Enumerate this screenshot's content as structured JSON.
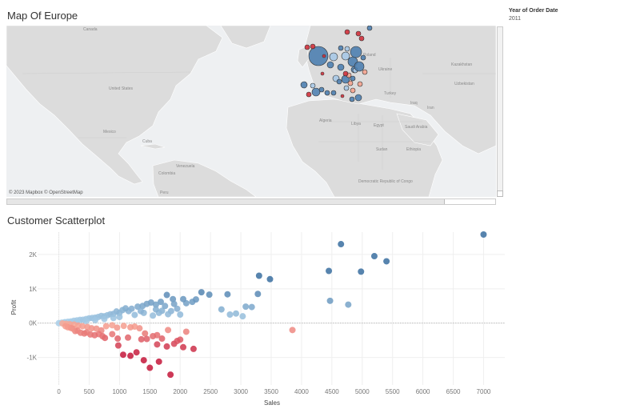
{
  "map": {
    "title": "Map Of Europe",
    "attribution": "© 2023 Mapbox © OpenStreetMap",
    "labels": [
      "Canada",
      "United States",
      "Mexico",
      "Cuba",
      "Venezuela",
      "Colombia",
      "Peru",
      "Algeria",
      "Libya",
      "Egypt",
      "Sudan",
      "Saudi Arabia",
      "Turkey",
      "Iraq",
      "Iran",
      "Ukraine",
      "Poland",
      "Kazakhstan",
      "Ethiopia",
      "Democratic Republic of Congo",
      "Uzbekistan"
    ],
    "bubble_colors": {
      "profit": "#4e7fb0",
      "profit_light": "#a7c8e6",
      "loss": "#d0313c",
      "loss_light": "#f4a38f"
    }
  },
  "filter": {
    "label": "Year of Order Date",
    "value": "2011"
  },
  "chart_data": {
    "type": "scatter",
    "title": "Customer Scatterplot",
    "xlabel": "Sales",
    "ylabel": "Profit",
    "xlim": [
      -350,
      7350
    ],
    "ylim": [
      -1800,
      2650
    ],
    "x_ticks": [
      0,
      500,
      1000,
      1500,
      2000,
      2500,
      3000,
      3500,
      4000,
      4500,
      5000,
      5500,
      6000,
      6500,
      7000
    ],
    "y_ticks": [
      -1000,
      0,
      1000,
      2000
    ],
    "y_tick_labels": [
      "-1K",
      "0K",
      "1K",
      "2K"
    ],
    "grid": true,
    "points": [
      [
        7000,
        2580
      ],
      [
        4650,
        2300
      ],
      [
        5200,
        1950
      ],
      [
        5400,
        1800
      ],
      [
        3300,
        1380
      ],
      [
        3480,
        1280
      ],
      [
        4450,
        1520
      ],
      [
        4980,
        1500
      ],
      [
        4470,
        650
      ],
      [
        4770,
        540
      ],
      [
        3850,
        -200
      ],
      [
        2350,
        900
      ],
      [
        2480,
        830
      ],
      [
        2780,
        840
      ],
      [
        3280,
        850
      ],
      [
        3180,
        470
      ],
      [
        3080,
        480
      ],
      [
        2920,
        280
      ],
      [
        2820,
        250
      ],
      [
        3030,
        200
      ],
      [
        2680,
        400
      ],
      [
        2200,
        620
      ],
      [
        2260,
        690
      ],
      [
        2100,
        580
      ],
      [
        2050,
        700
      ],
      [
        1780,
        820
      ],
      [
        1880,
        700
      ],
      [
        1680,
        620
      ],
      [
        1600,
        540
      ],
      [
        1520,
        600
      ],
      [
        1450,
        560
      ],
      [
        1380,
        500
      ],
      [
        1300,
        480
      ],
      [
        1200,
        420
      ],
      [
        1150,
        350
      ],
      [
        1100,
        430
      ],
      [
        1050,
        380
      ],
      [
        1000,
        300
      ],
      [
        950,
        340
      ],
      [
        900,
        270
      ],
      [
        850,
        260
      ],
      [
        800,
        230
      ],
      [
        750,
        200
      ],
      [
        700,
        210
      ],
      [
        650,
        180
      ],
      [
        600,
        160
      ],
      [
        550,
        150
      ],
      [
        500,
        140
      ],
      [
        450,
        120
      ],
      [
        400,
        100
      ],
      [
        350,
        95
      ],
      [
        300,
        80
      ],
      [
        250,
        70
      ],
      [
        200,
        50
      ],
      [
        150,
        40
      ],
      [
        100,
        30
      ],
      [
        50,
        15
      ],
      [
        0,
        0
      ],
      [
        1950,
        420
      ],
      [
        1850,
        350
      ],
      [
        2000,
        250
      ],
      [
        1700,
        360
      ],
      [
        1250,
        240
      ],
      [
        1400,
        300
      ],
      [
        1000,
        180
      ],
      [
        900,
        150
      ],
      [
        750,
        120
      ],
      [
        600,
        90
      ],
      [
        450,
        60
      ],
      [
        300,
        40
      ],
      [
        200,
        20
      ],
      [
        100,
        10
      ],
      [
        1550,
        220
      ],
      [
        1650,
        300
      ],
      [
        1900,
        560
      ],
      [
        1750,
        500
      ],
      [
        1350,
        350
      ],
      [
        1600,
        400
      ],
      [
        1800,
        260
      ],
      [
        1620,
        -350
      ],
      [
        1700,
        -450
      ],
      [
        1550,
        -380
      ],
      [
        1420,
        -300
      ],
      [
        1900,
        -600
      ],
      [
        2050,
        -700
      ],
      [
        2000,
        -480
      ],
      [
        1950,
        -520
      ],
      [
        2220,
        -750
      ],
      [
        1800,
        -200
      ],
      [
        1330,
        -150
      ],
      [
        1250,
        -100
      ],
      [
        1180,
        -120
      ],
      [
        1070,
        -80
      ],
      [
        960,
        -130
      ],
      [
        880,
        -60
      ],
      [
        780,
        -90
      ],
      [
        700,
        -210
      ],
      [
        620,
        -160
      ],
      [
        540,
        -150
      ],
      [
        470,
        -110
      ],
      [
        390,
        -90
      ],
      [
        320,
        -70
      ],
      [
        250,
        -40
      ],
      [
        180,
        -30
      ],
      [
        120,
        -20
      ],
      [
        60,
        -10
      ],
      [
        1500,
        -1300
      ],
      [
        1840,
        -1500
      ],
      [
        1650,
        -1120
      ],
      [
        1180,
        -950
      ],
      [
        1400,
        -1080
      ],
      [
        1060,
        -920
      ],
      [
        1280,
        -850
      ],
      [
        980,
        -650
      ],
      [
        1620,
        -620
      ],
      [
        1780,
        -680
      ],
      [
        1360,
        -470
      ],
      [
        1450,
        -460
      ],
      [
        2100,
        -250
      ],
      [
        1140,
        -420
      ],
      [
        970,
        -450
      ],
      [
        880,
        -320
      ],
      [
        760,
        -430
      ],
      [
        720,
        -380
      ],
      [
        660,
        -320
      ],
      [
        590,
        -350
      ],
      [
        520,
        -330
      ],
      [
        460,
        -270
      ],
      [
        420,
        -300
      ],
      [
        360,
        -280
      ],
      [
        310,
        -220
      ],
      [
        270,
        -230
      ],
      [
        230,
        -160
      ],
      [
        200,
        -140
      ],
      [
        150,
        -120
      ],
      [
        110,
        -90
      ]
    ]
  }
}
